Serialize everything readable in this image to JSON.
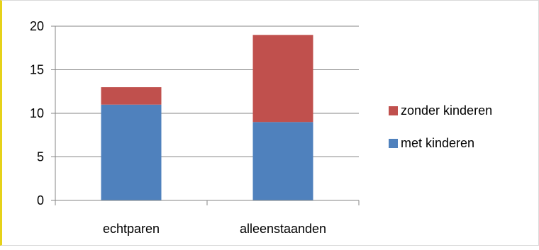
{
  "chart_data": {
    "type": "bar",
    "stacked": true,
    "categories": [
      "echtparen",
      "alleenstaanden"
    ],
    "series": [
      {
        "name": "met kinderen",
        "values": [
          11,
          9
        ],
        "color": "#4f81bd"
      },
      {
        "name": "zonder kinderen",
        "values": [
          2,
          10
        ],
        "color": "#c0504d"
      }
    ],
    "title": "",
    "xlabel": "",
    "ylabel": "",
    "ylim": [
      0,
      20
    ],
    "yticks": [
      0,
      5,
      10,
      15,
      20
    ],
    "grid": true,
    "legend_position": "right",
    "legend_order": [
      "zonder kinderen",
      "met kinderen"
    ]
  }
}
